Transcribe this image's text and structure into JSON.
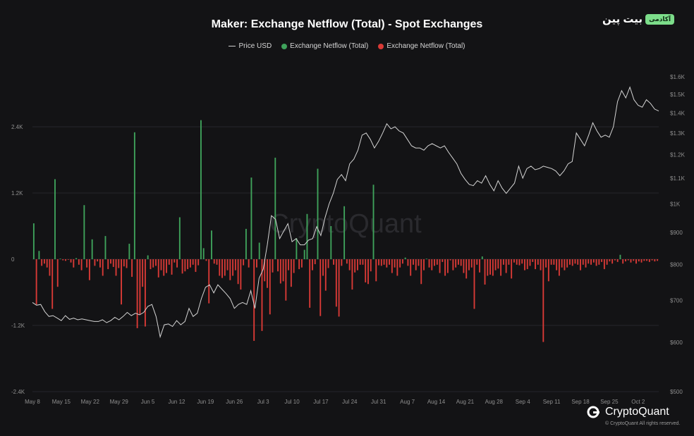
{
  "header": {
    "title": "Maker: Exchange Netflow (Total) - Spot Exchanges",
    "badge_text": "بیت پین",
    "badge_label": "آکادمی"
  },
  "legend": [
    {
      "label": "Price USD",
      "color": "#cfcfcf",
      "kind": "line"
    },
    {
      "label": "Exchange Netflow (Total)",
      "color": "#3fa25b",
      "kind": "dot"
    },
    {
      "label": "Exchange Netflow (Total)",
      "color": "#d93a36",
      "kind": "dot"
    }
  ],
  "watermark": "CryptoQuant",
  "footer": {
    "brand": "CryptoQuant",
    "copyright": "© CryptoQuant All rights reserved."
  },
  "colors": {
    "inflow": "#3fa25b",
    "outflow": "#d93a36",
    "price": "#d4d4d4",
    "grid": "#26262a"
  },
  "chart_data": {
    "type": "bar",
    "title": "Maker: Exchange Netflow (Total) - Spot Exchanges",
    "x_tick_labels": [
      "May 8",
      "May 15",
      "May 22",
      "May 29",
      "Jun 5",
      "Jun 12",
      "Jun 19",
      "Jun 26",
      "Jul 3",
      "Jul 10",
      "Jul 17",
      "Jul 24",
      "Jul 31",
      "Aug 7",
      "Aug 14",
      "Aug 21",
      "Aug 28",
      "Sep 4",
      "Sep 11",
      "Sep 18",
      "Sep 25",
      "Oct 2"
    ],
    "x_range_days": [
      0,
      152
    ],
    "y_left": {
      "ticks": [
        2400,
        1200,
        0,
        -1200,
        -2400
      ],
      "tick_labels": [
        "2.4K",
        "1.2K",
        "0",
        "-1.2K",
        "-2.4K"
      ],
      "range": [
        -2400,
        2400
      ]
    },
    "y_right": {
      "scale": "log",
      "ticks": [
        500,
        600,
        700,
        800,
        900,
        1000,
        1100,
        1200,
        1300,
        1400,
        1500,
        1600
      ],
      "tick_labels": [
        "$500",
        "$600",
        "$700",
        "$800",
        "$900",
        "$1K",
        "$1.1K",
        "$1.2K",
        "$1.3K",
        "$1.4K",
        "$1.5K",
        "$1.6K"
      ],
      "range": [
        500,
        1650
      ]
    },
    "grid": true,
    "legend_position": "top-center",
    "series": [
      {
        "name": "Exchange Netflow (Total)",
        "values": [
          650,
          -820,
          150,
          -120,
          -80,
          -150,
          -300,
          -900,
          1450,
          -500,
          10,
          -20,
          -30,
          -10,
          -60,
          -150,
          20,
          -100,
          -200,
          980,
          -150,
          -380,
          360,
          -120,
          -40,
          -150,
          -300,
          420,
          -180,
          -80,
          -140,
          -300,
          -160,
          -820,
          -130,
          -160,
          280,
          -320,
          2300,
          -1250,
          -1000,
          -500,
          -1220,
          70,
          -180,
          -150,
          -120,
          -330,
          -200,
          -300,
          -250,
          -100,
          -280,
          -60,
          -150,
          760,
          -260,
          -220,
          -180,
          -150,
          -100,
          -230,
          -110,
          2520,
          200,
          -30,
          -800,
          520,
          -80,
          -100,
          -300,
          -340,
          -300,
          -200,
          -380,
          -300,
          -200,
          -450,
          -550,
          -110,
          550,
          -150,
          1480,
          -1480,
          -150,
          300,
          -1300,
          -400,
          -520,
          -1000,
          -240,
          1840,
          -220,
          -440,
          -400,
          -750,
          -200,
          -500,
          -250,
          380,
          -180,
          -150,
          170,
          820,
          -880,
          -200,
          -90,
          1640,
          -1030,
          -300,
          -570,
          -160,
          600,
          -100,
          -860,
          -1040,
          -120,
          960,
          -80,
          -200,
          -550,
          -240,
          -200,
          -100,
          -100,
          -420,
          -450,
          -220,
          1350,
          -400,
          -110,
          -120,
          -100,
          -150,
          -100,
          -250,
          -150,
          -300,
          -150,
          -80,
          30,
          -120,
          -300,
          -100,
          -200,
          -120,
          -450,
          -200,
          10,
          -150,
          -200,
          -120,
          -100,
          -250,
          -50,
          -300,
          -250,
          -20,
          -200,
          -150,
          -100,
          -120,
          -250,
          -350,
          -200,
          -150,
          -900,
          -100,
          -240,
          50,
          -460,
          -300,
          -280,
          -300,
          -200,
          -170,
          -300,
          -100,
          -250,
          -100,
          -350,
          -60,
          -100,
          -110,
          -80,
          -200,
          -180,
          -120,
          -50,
          -180,
          -100,
          -200,
          -1500,
          -150,
          -400,
          -100,
          -100,
          -200,
          -300,
          -150,
          -200,
          -150,
          -100,
          -120,
          -80,
          -100,
          -200,
          -100,
          -150,
          -80,
          -100,
          -60,
          -120,
          -100,
          -50,
          -180,
          -100,
          -40,
          -80,
          -20,
          -50,
          80,
          -80,
          -40,
          -20,
          -60,
          -30,
          -80,
          -40,
          -60,
          -30,
          -30,
          -50,
          -20,
          -40,
          -30
        ]
      },
      {
        "name": "Price USD",
        "points": [
          [
            0,
            695
          ],
          [
            1,
            688
          ],
          [
            2,
            690
          ],
          [
            3,
            672
          ],
          [
            4,
            660
          ],
          [
            5,
            662
          ],
          [
            6,
            656
          ],
          [
            7,
            650
          ],
          [
            8,
            662
          ],
          [
            9,
            653
          ],
          [
            10,
            656
          ],
          [
            11,
            652
          ],
          [
            12,
            654
          ],
          [
            13,
            652
          ],
          [
            14,
            650
          ],
          [
            15,
            648
          ],
          [
            16,
            648
          ],
          [
            17,
            652
          ],
          [
            18,
            645
          ],
          [
            19,
            650
          ],
          [
            20,
            658
          ],
          [
            21,
            652
          ],
          [
            22,
            660
          ],
          [
            23,
            670
          ],
          [
            24,
            662
          ],
          [
            25,
            668
          ],
          [
            26,
            664
          ],
          [
            27,
            670
          ],
          [
            28,
            685
          ],
          [
            29,
            690
          ],
          [
            30,
            660
          ],
          [
            31,
            612
          ],
          [
            32,
            640
          ],
          [
            33,
            642
          ],
          [
            34,
            636
          ],
          [
            35,
            650
          ],
          [
            36,
            640
          ],
          [
            37,
            648
          ],
          [
            38,
            680
          ],
          [
            39,
            660
          ],
          [
            40,
            668
          ],
          [
            41,
            705
          ],
          [
            42,
            735
          ],
          [
            43,
            742
          ],
          [
            44,
            720
          ],
          [
            45,
            742
          ],
          [
            46,
            730
          ],
          [
            47,
            718
          ],
          [
            48,
            705
          ],
          [
            49,
            680
          ],
          [
            50,
            690
          ],
          [
            51,
            695
          ],
          [
            52,
            690
          ],
          [
            53,
            726
          ],
          [
            54,
            680
          ],
          [
            55,
            760
          ],
          [
            56,
            786
          ],
          [
            57,
            860
          ],
          [
            58,
            958
          ],
          [
            59,
            945
          ],
          [
            60,
            880
          ],
          [
            61,
            905
          ],
          [
            62,
            930
          ],
          [
            63,
            870
          ],
          [
            64,
            880
          ],
          [
            65,
            860
          ],
          [
            66,
            860
          ],
          [
            67,
            875
          ],
          [
            68,
            880
          ],
          [
            69,
            920
          ],
          [
            70,
            890
          ],
          [
            71,
            950
          ],
          [
            72,
            1000
          ],
          [
            73,
            1040
          ],
          [
            74,
            1095
          ],
          [
            75,
            1115
          ],
          [
            76,
            1090
          ],
          [
            77,
            1160
          ],
          [
            78,
            1180
          ],
          [
            79,
            1220
          ],
          [
            80,
            1290
          ],
          [
            81,
            1300
          ],
          [
            82,
            1270
          ],
          [
            83,
            1230
          ],
          [
            84,
            1260
          ],
          [
            85,
            1300
          ],
          [
            86,
            1345
          ],
          [
            87,
            1320
          ],
          [
            88,
            1330
          ],
          [
            89,
            1310
          ],
          [
            90,
            1300
          ],
          [
            91,
            1270
          ],
          [
            92,
            1240
          ],
          [
            93,
            1230
          ],
          [
            94,
            1230
          ],
          [
            95,
            1220
          ],
          [
            96,
            1240
          ],
          [
            97,
            1250
          ],
          [
            98,
            1240
          ],
          [
            99,
            1230
          ],
          [
            100,
            1240
          ],
          [
            101,
            1210
          ],
          [
            102,
            1185
          ],
          [
            103,
            1160
          ],
          [
            104,
            1120
          ],
          [
            105,
            1095
          ],
          [
            106,
            1075
          ],
          [
            107,
            1070
          ],
          [
            108,
            1090
          ],
          [
            109,
            1080
          ],
          [
            110,
            1110
          ],
          [
            111,
            1075
          ],
          [
            112,
            1050
          ],
          [
            113,
            1090
          ],
          [
            114,
            1060
          ],
          [
            115,
            1040
          ],
          [
            116,
            1060
          ],
          [
            117,
            1080
          ],
          [
            118,
            1150
          ],
          [
            119,
            1100
          ],
          [
            120,
            1140
          ],
          [
            121,
            1150
          ],
          [
            122,
            1135
          ],
          [
            123,
            1140
          ],
          [
            124,
            1150
          ],
          [
            125,
            1145
          ],
          [
            126,
            1140
          ],
          [
            127,
            1130
          ],
          [
            128,
            1110
          ],
          [
            129,
            1130
          ],
          [
            130,
            1160
          ],
          [
            131,
            1170
          ],
          [
            132,
            1300
          ],
          [
            133,
            1270
          ],
          [
            134,
            1240
          ],
          [
            135,
            1290
          ],
          [
            136,
            1350
          ],
          [
            137,
            1310
          ],
          [
            138,
            1280
          ],
          [
            139,
            1290
          ],
          [
            140,
            1280
          ],
          [
            141,
            1330
          ],
          [
            142,
            1460
          ],
          [
            143,
            1520
          ],
          [
            144,
            1480
          ],
          [
            145,
            1540
          ],
          [
            146,
            1470
          ],
          [
            147,
            1440
          ],
          [
            148,
            1430
          ],
          [
            149,
            1470
          ],
          [
            150,
            1450
          ],
          [
            151,
            1420
          ],
          [
            152,
            1410
          ]
        ]
      }
    ]
  }
}
